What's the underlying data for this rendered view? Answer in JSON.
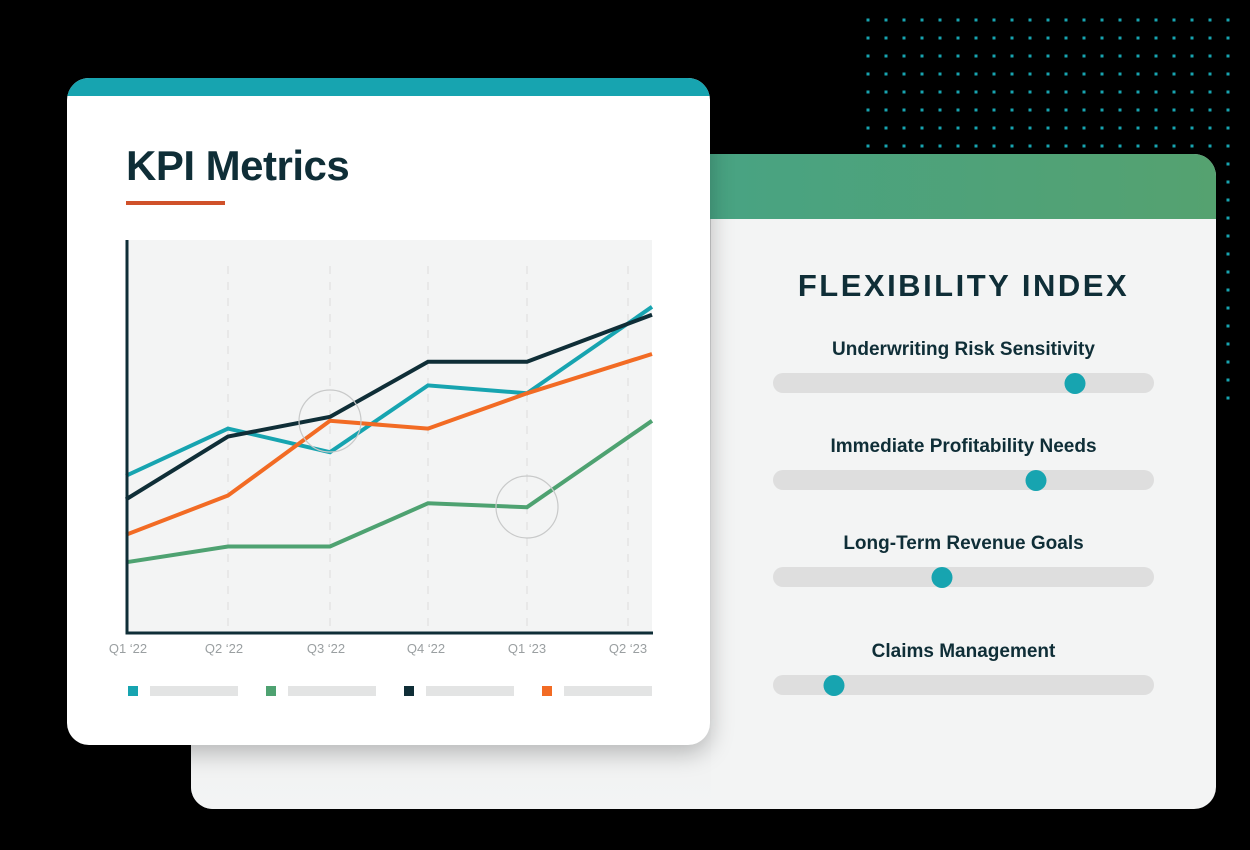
{
  "colors": {
    "teal": "#17a4b0",
    "green": "#4ea271",
    "navy": "#0f2e37",
    "orange": "#f26b24",
    "accent_underline": "#d0512a",
    "plot_bg": "#f3f4f4",
    "track": "#dedede"
  },
  "kpi_card": {
    "title": "KPI Metrics"
  },
  "chart_data": {
    "type": "line",
    "title": "KPI Metrics",
    "xlabel": "",
    "ylabel": "",
    "categories": [
      "Q1 ‘22",
      "Q2 ‘22",
      "Q3 ‘22",
      "Q4 ‘22",
      "Q1 ‘23",
      "Q2 ‘23"
    ],
    "ylim": [
      0,
      100
    ],
    "grid": "vertical dashed",
    "legend_position": "bottom",
    "series": [
      {
        "name": "",
        "color": "#17a4b0",
        "values": [
          40,
          52,
          46,
          63,
          61,
          83
        ]
      },
      {
        "name": "",
        "color": "#4ea271",
        "values": [
          18,
          22,
          22,
          33,
          32,
          54
        ]
      },
      {
        "name": "",
        "color": "#0f2e37",
        "values": [
          34,
          50,
          55,
          69,
          69,
          81
        ]
      },
      {
        "name": "",
        "color": "#f26b24",
        "values": [
          25,
          35,
          54,
          52,
          61,
          71
        ]
      }
    ],
    "highlights": [
      {
        "category": "Q3 ‘22",
        "note": "circle marker"
      },
      {
        "category": "Q1 ‘23",
        "note": "circle marker"
      }
    ]
  },
  "legend": [
    {
      "color": "#17a4b0",
      "label": ""
    },
    {
      "color": "#4ea271",
      "label": ""
    },
    {
      "color": "#0f2e37",
      "label": ""
    },
    {
      "color": "#f26b24",
      "label": ""
    }
  ],
  "flexibility_panel": {
    "title": "FLEXIBILITY INDEX",
    "sliders": [
      {
        "label": "Underwriting Risk Sensitivity",
        "value": 81
      },
      {
        "label": "Immediate Profitability Needs",
        "value": 70
      },
      {
        "label": "Long-Term Revenue Goals",
        "value": 44
      },
      {
        "label": "Claims Management",
        "value": 14
      }
    ]
  }
}
